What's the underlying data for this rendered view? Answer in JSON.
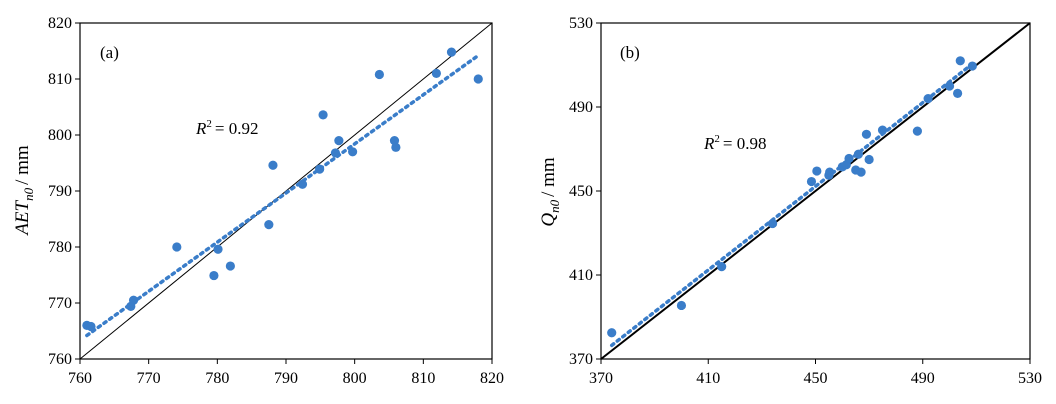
{
  "chart_data": [
    {
      "type": "scatter",
      "panel_label": "(a)",
      "ylabel_main": "AET",
      "ylabel_sub": "n0",
      "ylabel_unit": "/ mm",
      "xlim": [
        760,
        820
      ],
      "ylim": [
        760,
        820
      ],
      "xticks": [
        "760",
        "770",
        "780",
        "790",
        "800",
        "810",
        "820"
      ],
      "yticks": [
        "760",
        "770",
        "780",
        "790",
        "800",
        "810",
        "820"
      ],
      "r2_label": "R",
      "r2_sup": "2",
      "r2_value": "= 0.92",
      "one_to_one_line": true,
      "trend_line": {
        "x": [
          761,
          818
        ],
        "y": [
          764.2,
          814.2
        ]
      },
      "marker_color": "#3a7dc9",
      "trend_color": "#3a7dc9",
      "points": [
        {
          "x": 761.0,
          "y": 766.0
        },
        {
          "x": 761.6,
          "y": 765.8
        },
        {
          "x": 767.4,
          "y": 769.4
        },
        {
          "x": 767.8,
          "y": 770.5
        },
        {
          "x": 774.1,
          "y": 780.0
        },
        {
          "x": 779.5,
          "y": 774.9
        },
        {
          "x": 780.1,
          "y": 779.6
        },
        {
          "x": 781.9,
          "y": 776.6
        },
        {
          "x": 787.5,
          "y": 784.0
        },
        {
          "x": 788.1,
          "y": 794.6
        },
        {
          "x": 792.4,
          "y": 791.2
        },
        {
          "x": 794.9,
          "y": 793.9
        },
        {
          "x": 795.4,
          "y": 803.6
        },
        {
          "x": 797.2,
          "y": 796.8
        },
        {
          "x": 797.7,
          "y": 799.0
        },
        {
          "x": 799.7,
          "y": 797.0
        },
        {
          "x": 803.6,
          "y": 810.8
        },
        {
          "x": 805.8,
          "y": 799.0
        },
        {
          "x": 806.0,
          "y": 797.8
        },
        {
          "x": 811.9,
          "y": 811.0
        },
        {
          "x": 814.1,
          "y": 814.8
        },
        {
          "x": 818.0,
          "y": 810.0
        }
      ]
    },
    {
      "type": "scatter",
      "panel_label": "(b)",
      "ylabel_main": "Q",
      "ylabel_sub": "n0",
      "ylabel_unit": "/ mm",
      "xlim": [
        370,
        530
      ],
      "ylim": [
        370,
        530
      ],
      "xticks": [
        "370",
        "410",
        "450",
        "490",
        "530"
      ],
      "yticks": [
        "370",
        "410",
        "450",
        "490",
        "530"
      ],
      "r2_label": "R",
      "r2_sup": "2",
      "r2_value": "= 0.98",
      "one_to_one_line": true,
      "trend_line": {
        "x": [
          374,
          508
        ],
        "y": [
          376.5,
          510.0
        ]
      },
      "marker_color": "#3a7dc9",
      "trend_color": "#3a7dc9",
      "points": [
        {
          "x": 374.0,
          "y": 382.5
        },
        {
          "x": 400.0,
          "y": 395.5
        },
        {
          "x": 415.0,
          "y": 414.0
        },
        {
          "x": 434.0,
          "y": 434.5
        },
        {
          "x": 448.5,
          "y": 454.5
        },
        {
          "x": 450.5,
          "y": 459.5
        },
        {
          "x": 455.0,
          "y": 457.5
        },
        {
          "x": 455.3,
          "y": 459.0
        },
        {
          "x": 460.0,
          "y": 461.5
        },
        {
          "x": 461.5,
          "y": 462.5
        },
        {
          "x": 462.5,
          "y": 465.5
        },
        {
          "x": 465.0,
          "y": 460.0
        },
        {
          "x": 466.0,
          "y": 467.5
        },
        {
          "x": 467.0,
          "y": 459.0
        },
        {
          "x": 469.0,
          "y": 477.0
        },
        {
          "x": 470.0,
          "y": 465.0
        },
        {
          "x": 475.0,
          "y": 479.0
        },
        {
          "x": 488.0,
          "y": 478.5
        },
        {
          "x": 492.0,
          "y": 494.0
        },
        {
          "x": 500.0,
          "y": 500.0
        },
        {
          "x": 503.0,
          "y": 496.5
        },
        {
          "x": 504.0,
          "y": 512.0
        },
        {
          "x": 508.5,
          "y": 509.5
        }
      ]
    }
  ]
}
